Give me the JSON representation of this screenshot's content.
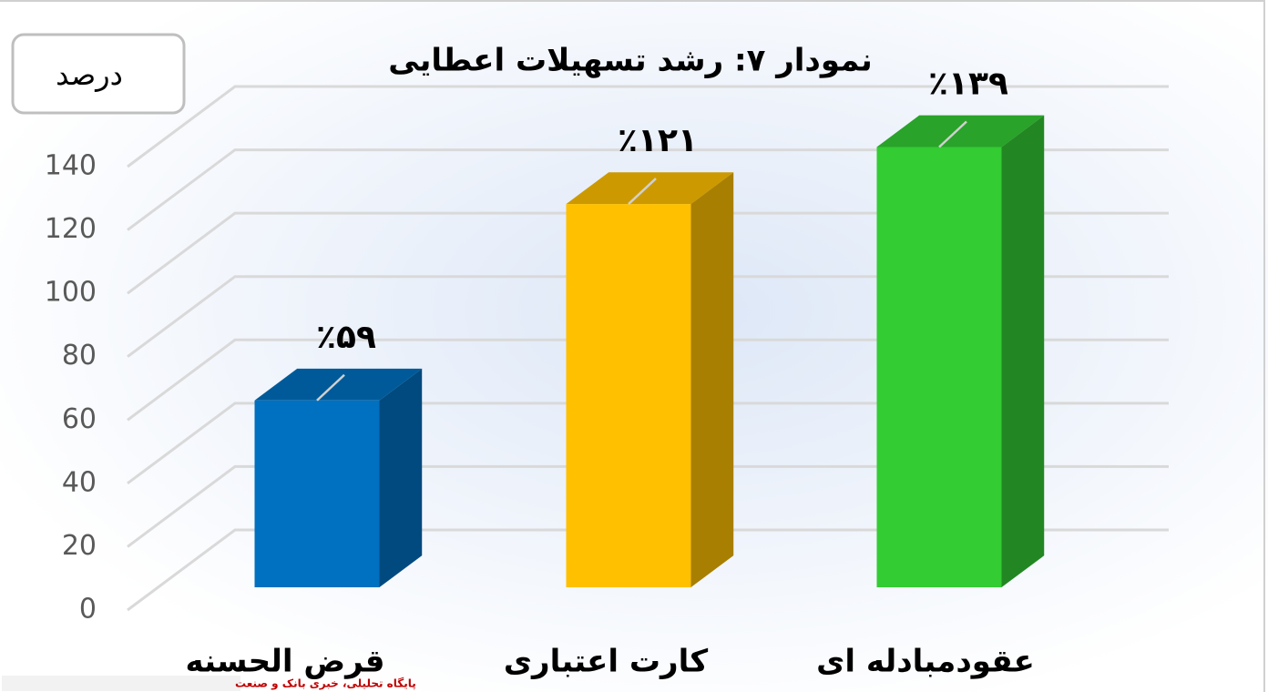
{
  "chart_data": {
    "type": "bar3d",
    "title": "نمودار ۷: رشد تسهیلات اعطایی",
    "y_label": "درصد",
    "categories": [
      "قرض الحسنه",
      "کارت اعتباری",
      "عقودمبادله ای"
    ],
    "values": [
      59,
      121,
      139
    ],
    "value_labels": [
      "٪۵۹",
      "٪۱۲۱",
      "٪۱۳۹"
    ],
    "colors": [
      "#0070c0",
      "#ffc000",
      "#33cc33"
    ],
    "ylim": [
      0,
      140
    ],
    "yticks": [
      0,
      20,
      40,
      60,
      80,
      100,
      120,
      140
    ],
    "grid": true
  },
  "watermark": "پایگاه تحلیلی، خبری بانک و صنعت"
}
